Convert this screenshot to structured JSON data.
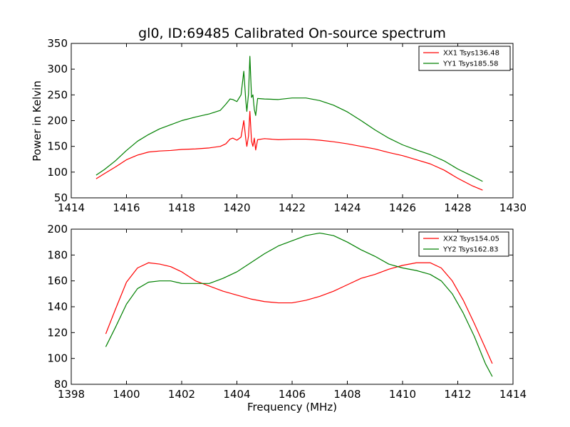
{
  "chart_data": [
    {
      "type": "line",
      "title": "gl0, ID:69485 Calibrated On-source spectrum",
      "xlabel": "",
      "ylabel": "Power in Kelvin",
      "xlim": [
        1414,
        1430
      ],
      "ylim": [
        50,
        350
      ],
      "xticks": [
        1414,
        1416,
        1418,
        1420,
        1422,
        1424,
        1426,
        1428,
        1430
      ],
      "yticks": [
        50,
        100,
        150,
        200,
        250,
        300,
        350
      ],
      "legend_position": "top-right",
      "series": [
        {
          "name": "XX1 Tsys136.48",
          "color": "#ff0000",
          "points": [
            [
              1414.9,
              87
            ],
            [
              1415.2,
              97
            ],
            [
              1415.6,
              110
            ],
            [
              1416.0,
              124
            ],
            [
              1416.4,
              133
            ],
            [
              1416.8,
              139
            ],
            [
              1417.2,
              141
            ],
            [
              1417.6,
              142
            ],
            [
              1418.0,
              144
            ],
            [
              1418.5,
              145
            ],
            [
              1419.0,
              147
            ],
            [
              1419.4,
              150
            ],
            [
              1419.6,
              155
            ],
            [
              1419.75,
              164
            ],
            [
              1419.85,
              166
            ],
            [
              1420.0,
              162
            ],
            [
              1420.15,
              168
            ],
            [
              1420.25,
              200
            ],
            [
              1420.32,
              165
            ],
            [
              1420.36,
              150
            ],
            [
              1420.42,
              170
            ],
            [
              1420.47,
              218
            ],
            [
              1420.53,
              160
            ],
            [
              1420.58,
              150
            ],
            [
              1420.63,
              166
            ],
            [
              1420.68,
              143
            ],
            [
              1420.75,
              163
            ],
            [
              1421.0,
              165
            ],
            [
              1421.5,
              163
            ],
            [
              1422.0,
              164
            ],
            [
              1422.5,
              164
            ],
            [
              1423.0,
              162
            ],
            [
              1423.5,
              159
            ],
            [
              1424.0,
              155
            ],
            [
              1424.5,
              150
            ],
            [
              1425.0,
              145
            ],
            [
              1425.5,
              138
            ],
            [
              1426.0,
              132
            ],
            [
              1426.5,
              124
            ],
            [
              1427.0,
              116
            ],
            [
              1427.5,
              104
            ],
            [
              1428.0,
              88
            ],
            [
              1428.5,
              74
            ],
            [
              1428.9,
              65
            ]
          ]
        },
        {
          "name": "YY1 Tsys185.58",
          "color": "#008000",
          "points": [
            [
              1414.9,
              94
            ],
            [
              1415.2,
              105
            ],
            [
              1415.6,
              122
            ],
            [
              1416.0,
              142
            ],
            [
              1416.4,
              160
            ],
            [
              1416.8,
              173
            ],
            [
              1417.2,
              184
            ],
            [
              1417.6,
              192
            ],
            [
              1418.0,
              200
            ],
            [
              1418.5,
              207
            ],
            [
              1419.0,
              213
            ],
            [
              1419.4,
              220
            ],
            [
              1419.6,
              232
            ],
            [
              1419.75,
              242
            ],
            [
              1419.85,
              241
            ],
            [
              1420.0,
              237
            ],
            [
              1420.15,
              250
            ],
            [
              1420.25,
              296
            ],
            [
              1420.32,
              240
            ],
            [
              1420.36,
              218
            ],
            [
              1420.42,
              252
            ],
            [
              1420.47,
              325
            ],
            [
              1420.53,
              245
            ],
            [
              1420.58,
              250
            ],
            [
              1420.63,
              222
            ],
            [
              1420.68,
              210
            ],
            [
              1420.75,
              243
            ],
            [
              1421.0,
              242
            ],
            [
              1421.5,
              241
            ],
            [
              1422.0,
              244
            ],
            [
              1422.5,
              244
            ],
            [
              1423.0,
              239
            ],
            [
              1423.5,
              230
            ],
            [
              1424.0,
              217
            ],
            [
              1424.5,
              200
            ],
            [
              1425.0,
              182
            ],
            [
              1425.5,
              166
            ],
            [
              1426.0,
              153
            ],
            [
              1426.5,
              143
            ],
            [
              1427.0,
              134
            ],
            [
              1427.5,
              122
            ],
            [
              1428.0,
              106
            ],
            [
              1428.5,
              93
            ],
            [
              1428.9,
              82
            ]
          ]
        }
      ]
    },
    {
      "type": "line",
      "title": "",
      "xlabel": "Frequency (MHz)",
      "ylabel": "",
      "xlim": [
        1398,
        1414
      ],
      "ylim": [
        80,
        200
      ],
      "xticks": [
        1398,
        1400,
        1402,
        1404,
        1406,
        1408,
        1410,
        1412,
        1414
      ],
      "yticks": [
        80,
        100,
        120,
        140,
        160,
        180,
        200
      ],
      "legend_position": "top-right",
      "series": [
        {
          "name": "XX2 Tsys154.05",
          "color": "#ff0000",
          "points": [
            [
              1399.25,
              119
            ],
            [
              1399.6,
              138
            ],
            [
              1400.0,
              159
            ],
            [
              1400.4,
              170
            ],
            [
              1400.8,
              174
            ],
            [
              1401.2,
              173
            ],
            [
              1401.6,
              171
            ],
            [
              1402.0,
              167
            ],
            [
              1402.5,
              160
            ],
            [
              1403.0,
              156
            ],
            [
              1403.5,
              152
            ],
            [
              1404.0,
              149
            ],
            [
              1404.5,
              146
            ],
            [
              1405.0,
              144
            ],
            [
              1405.5,
              143
            ],
            [
              1406.0,
              143
            ],
            [
              1406.5,
              145
            ],
            [
              1407.0,
              148
            ],
            [
              1407.5,
              152
            ],
            [
              1408.0,
              157
            ],
            [
              1408.5,
              162
            ],
            [
              1409.0,
              165
            ],
            [
              1409.5,
              169
            ],
            [
              1410.0,
              172
            ],
            [
              1410.5,
              174
            ],
            [
              1411.0,
              174
            ],
            [
              1411.4,
              170
            ],
            [
              1411.8,
              160
            ],
            [
              1412.2,
              145
            ],
            [
              1412.6,
              127
            ],
            [
              1413.0,
              108
            ],
            [
              1413.25,
              96
            ]
          ]
        },
        {
          "name": "YY2 Tsys162.83",
          "color": "#008000",
          "points": [
            [
              1399.25,
              109
            ],
            [
              1399.6,
              124
            ],
            [
              1400.0,
              142
            ],
            [
              1400.4,
              154
            ],
            [
              1400.8,
              159
            ],
            [
              1401.2,
              160
            ],
            [
              1401.6,
              160
            ],
            [
              1402.0,
              158
            ],
            [
              1402.5,
              158
            ],
            [
              1403.0,
              158
            ],
            [
              1403.5,
              162
            ],
            [
              1404.0,
              167
            ],
            [
              1404.5,
              174
            ],
            [
              1405.0,
              181
            ],
            [
              1405.5,
              187
            ],
            [
              1406.0,
              191
            ],
            [
              1406.5,
              195
            ],
            [
              1407.0,
              197
            ],
            [
              1407.5,
              195
            ],
            [
              1408.0,
              190
            ],
            [
              1408.5,
              184
            ],
            [
              1409.0,
              179
            ],
            [
              1409.5,
              173
            ],
            [
              1410.0,
              170
            ],
            [
              1410.5,
              168
            ],
            [
              1411.0,
              165
            ],
            [
              1411.4,
              160
            ],
            [
              1411.8,
              150
            ],
            [
              1412.2,
              135
            ],
            [
              1412.6,
              117
            ],
            [
              1413.0,
              96
            ],
            [
              1413.25,
              86
            ]
          ]
        }
      ]
    }
  ]
}
